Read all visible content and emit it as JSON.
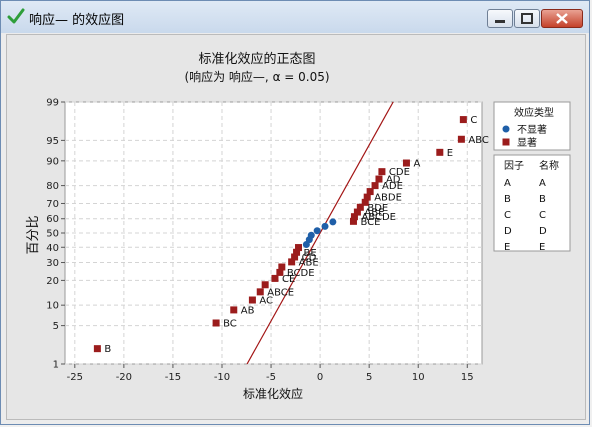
{
  "window": {
    "title": "响应— 的效应图",
    "icon": "green-checkmark-icon",
    "controls": [
      "minimize-icon",
      "maximize-icon",
      "close-icon"
    ]
  },
  "chart_data": {
    "type": "scatter",
    "title": "标准化效应的正态图",
    "subtitle": "(响应为 响应—, α = 0.05)",
    "xlabel": "标准化效应",
    "ylabel": "百分比",
    "xlim": [
      -26,
      16.5
    ],
    "ylim": [
      1,
      99
    ],
    "yscale": "normal-probability",
    "x_ticks": [
      -25,
      -20,
      -15,
      -10,
      -5,
      0,
      5,
      10,
      15
    ],
    "y_ticks": [
      1,
      5,
      10,
      20,
      30,
      40,
      50,
      60,
      70,
      80,
      90,
      95,
      99
    ],
    "grid": true,
    "legend_title": "效应类型",
    "legend_position": "right",
    "series": [
      {
        "name": "不显著",
        "color": "#1f5fa8",
        "marker": "circle",
        "points": [
          {
            "x": -1.4,
            "y": 41.9
          },
          {
            "x": -1.1,
            "y": 45.3
          },
          {
            "x": -0.9,
            "y": 48.4
          },
          {
            "x": -0.3,
            "y": 51.6
          },
          {
            "x": 0.5,
            "y": 54.7
          },
          {
            "x": 1.3,
            "y": 57.8
          }
        ]
      },
      {
        "name": "显著",
        "color": "#9b1c1c",
        "marker": "square",
        "points": [
          {
            "x": -22.7,
            "y": 2.0,
            "label": "B"
          },
          {
            "x": -10.6,
            "y": 5.5,
            "label": "BC"
          },
          {
            "x": -8.8,
            "y": 8.6,
            "label": "AB"
          },
          {
            "x": -6.9,
            "y": 11.7,
            "label": "AC"
          },
          {
            "x": -6.1,
            "y": 14.8,
            "label": "ABCE"
          },
          {
            "x": -5.6,
            "y": 17.9,
            "label": ""
          },
          {
            "x": -4.6,
            "y": 21.0,
            "label": "CE"
          },
          {
            "x": -4.1,
            "y": 24.2,
            "label": "BCDE"
          },
          {
            "x": -3.9,
            "y": 27.3,
            "label": ""
          },
          {
            "x": -2.9,
            "y": 30.4,
            "label": "ABE"
          },
          {
            "x": -2.6,
            "y": 33.5,
            "label": "CD"
          },
          {
            "x": -2.4,
            "y": 36.6,
            "label": "BE"
          },
          {
            "x": -2.2,
            "y": 39.8,
            "label": ""
          },
          {
            "x": 3.4,
            "y": 58.2,
            "label": "BCE"
          },
          {
            "x": 3.5,
            "y": 61.4,
            "label": "ABCDE"
          },
          {
            "x": 3.8,
            "y": 64.5,
            "label": "ABE"
          },
          {
            "x": 4.1,
            "y": 67.6,
            "label": "BDE"
          },
          {
            "x": 4.6,
            "y": 70.7,
            "label": ""
          },
          {
            "x": 4.8,
            "y": 73.8,
            "label": "ABDE"
          },
          {
            "x": 5.1,
            "y": 76.9,
            "label": ""
          },
          {
            "x": 5.6,
            "y": 80.0,
            "label": "ADE"
          },
          {
            "x": 6.0,
            "y": 83.1,
            "label": "AD"
          },
          {
            "x": 6.3,
            "y": 86.2,
            "label": "CDE"
          },
          {
            "x": 8.8,
            "y": 89.3,
            "label": "A"
          },
          {
            "x": 12.2,
            "y": 92.4,
            "label": "E"
          },
          {
            "x": 14.4,
            "y": 95.2,
            "label": "ABC"
          },
          {
            "x": 14.6,
            "y": 97.8,
            "label": "C"
          }
        ]
      }
    ],
    "reference_line": {
      "color": "#a31515",
      "mean": 0,
      "sd": 3.2
    },
    "factors_table": {
      "headers": [
        "因子",
        "名称"
      ],
      "rows": [
        [
          "A",
          "A"
        ],
        [
          "B",
          "B"
        ],
        [
          "C",
          "C"
        ],
        [
          "D",
          "D"
        ],
        [
          "E",
          "E"
        ]
      ]
    }
  }
}
